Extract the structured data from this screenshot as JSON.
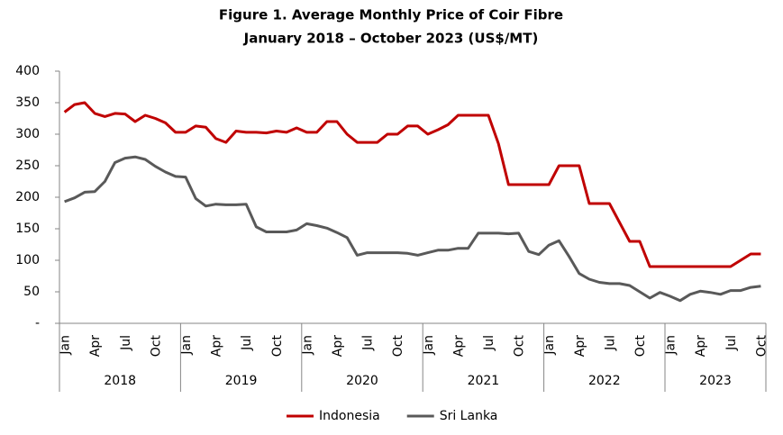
{
  "chart_data": {
    "type": "line",
    "title": "Figure 1. Average Monthly Price of Coir Fibre",
    "subtitle": "January 2018 – October 2023 (US$/MT)",
    "categories": [
      "Jan",
      null,
      null,
      "Apr",
      null,
      null,
      "Jul",
      null,
      null,
      "Oct",
      null,
      null,
      "Jan",
      null,
      null,
      "Apr",
      null,
      null,
      "Jul",
      null,
      null,
      "Oct",
      null,
      null,
      "Jan",
      null,
      null,
      "Apr",
      null,
      null,
      "Jul",
      null,
      null,
      "Oct",
      null,
      null,
      "Jan",
      null,
      null,
      "Apr",
      null,
      null,
      "Jul",
      null,
      null,
      "Oct",
      null,
      null,
      "Jan",
      null,
      null,
      "Apr",
      null,
      null,
      "Jul",
      null,
      null,
      "Oct",
      null,
      null,
      "Jan",
      null,
      null,
      "Apr",
      null,
      null,
      "Jul",
      null,
      null,
      "Oct"
    ],
    "x_groups": [
      "2018",
      "2019",
      "2020",
      "2021",
      "2022",
      "2023"
    ],
    "series": [
      {
        "name": "Indonesia",
        "color": "#c00000",
        "values": [
          335,
          347,
          350,
          333,
          328,
          333,
          332,
          320,
          330,
          325,
          318,
          303,
          303,
          313,
          311,
          293,
          287,
          305,
          303,
          303,
          302,
          305,
          303,
          310,
          303,
          303,
          320,
          320,
          300,
          287,
          287,
          287,
          300,
          300,
          313,
          313,
          300,
          307,
          315,
          330,
          330,
          330,
          330,
          285,
          220,
          220,
          220,
          220,
          220,
          250,
          250,
          250,
          190,
          190,
          190,
          160,
          130,
          130,
          90,
          90,
          90,
          90,
          90,
          90,
          90,
          90,
          90,
          100,
          110,
          110
        ]
      },
      {
        "name": "Sri Lanka",
        "color": "#595959",
        "values": [
          193,
          199,
          208,
          209,
          225,
          255,
          262,
          264,
          260,
          249,
          240,
          233,
          232,
          198,
          186,
          189,
          188,
          188,
          189,
          153,
          145,
          145,
          145,
          148,
          158,
          155,
          151,
          144,
          136,
          108,
          112,
          112,
          112,
          112,
          111,
          108,
          112,
          116,
          116,
          119,
          119,
          143,
          143,
          143,
          142,
          143,
          114,
          109,
          124,
          131,
          106,
          79,
          70,
          65,
          63,
          63,
          60,
          50,
          40,
          49,
          43,
          36,
          46,
          51,
          49,
          46,
          52,
          52,
          57,
          59
        ]
      }
    ],
    "ylim": [
      0,
      400
    ],
    "yticks": [
      {
        "value": 0,
        "label": "-"
      },
      50,
      100,
      150,
      200,
      250,
      300,
      350,
      400
    ],
    "grid": false,
    "legend": "bottom"
  }
}
